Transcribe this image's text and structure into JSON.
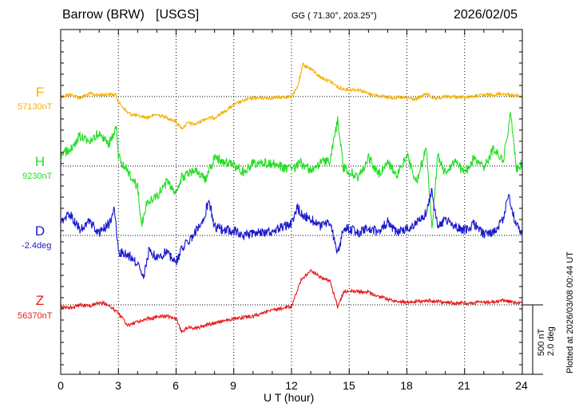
{
  "header": {
    "station": "Barrow (BRW)",
    "network": "[USGS]",
    "coords": "GG ( 71.30°, 203.25°)",
    "date": "2026/02/05"
  },
  "side": {
    "plotted": "Plotted at 2026/03/08 00:44 UT",
    "scale_nt": "500 nT",
    "scale_deg": "2.0 deg"
  },
  "chart_data": {
    "type": "line",
    "xlabel": "U T (hour)",
    "xlim": [
      0,
      24
    ],
    "xticks": [
      "0",
      "3",
      "6",
      "9",
      "12",
      "15",
      "18",
      "21",
      "24"
    ],
    "grid": true,
    "scale": {
      "nT_per_bar": 500,
      "deg_per_bar": 2.0
    },
    "series": [
      {
        "name": "F",
        "baseline": "57130nT",
        "color": "#f5b000",
        "points": [
          [
            0,
            0
          ],
          [
            0.5,
            -15
          ],
          [
            1,
            10
          ],
          [
            1.5,
            -20
          ],
          [
            2,
            -10
          ],
          [
            2.5,
            -18
          ],
          [
            2.9,
            -10
          ],
          [
            3,
            40
          ],
          [
            3.5,
            120
          ],
          [
            4,
            140
          ],
          [
            4.5,
            150
          ],
          [
            5,
            130
          ],
          [
            5.5,
            150
          ],
          [
            6,
            180
          ],
          [
            6.3,
            230
          ],
          [
            6.6,
            190
          ],
          [
            7,
            200
          ],
          [
            7.5,
            160
          ],
          [
            8,
            150
          ],
          [
            8.5,
            110
          ],
          [
            9,
            60
          ],
          [
            9.5,
            30
          ],
          [
            10,
            10
          ],
          [
            11,
            10
          ],
          [
            12,
            0
          ],
          [
            12.3,
            -60
          ],
          [
            12.6,
            -230
          ],
          [
            13,
            -200
          ],
          [
            13.5,
            -140
          ],
          [
            14,
            -110
          ],
          [
            14.5,
            -60
          ],
          [
            15,
            -50
          ],
          [
            15.5,
            -50
          ],
          [
            16,
            -20
          ],
          [
            17,
            5
          ],
          [
            18,
            10
          ],
          [
            18.5,
            20
          ],
          [
            19,
            -20
          ],
          [
            19.5,
            20
          ],
          [
            20,
            0
          ],
          [
            21,
            5
          ],
          [
            22,
            -10
          ],
          [
            23,
            -20
          ],
          [
            24,
            0
          ]
        ]
      },
      {
        "name": "H",
        "baseline": "9230nT",
        "color": "#22dd22",
        "points": [
          [
            0,
            -80
          ],
          [
            0.5,
            -120
          ],
          [
            1,
            -220
          ],
          [
            1.5,
            -180
          ],
          [
            2,
            -240
          ],
          [
            2.5,
            -160
          ],
          [
            2.9,
            -280
          ],
          [
            3,
            -60
          ],
          [
            3.5,
            40
          ],
          [
            4,
            150
          ],
          [
            4.2,
            420
          ],
          [
            4.5,
            260
          ],
          [
            5,
            220
          ],
          [
            5.5,
            120
          ],
          [
            6,
            180
          ],
          [
            6.3,
            80
          ],
          [
            7,
            20
          ],
          [
            7.5,
            100
          ],
          [
            8,
            -60
          ],
          [
            8.5,
            -30
          ],
          [
            9,
            0
          ],
          [
            9.5,
            40
          ],
          [
            10,
            -20
          ],
          [
            11,
            -20
          ],
          [
            12,
            30
          ],
          [
            12.5,
            -20
          ],
          [
            13,
            30
          ],
          [
            13.5,
            -20
          ],
          [
            14,
            -40
          ],
          [
            14.4,
            -330
          ],
          [
            14.7,
            10
          ],
          [
            15,
            40
          ],
          [
            15.5,
            80
          ],
          [
            16,
            -60
          ],
          [
            16.5,
            60
          ],
          [
            17,
            -30
          ],
          [
            17.5,
            70
          ],
          [
            18,
            -80
          ],
          [
            18.5,
            120
          ],
          [
            19,
            -140
          ],
          [
            19.3,
            460
          ],
          [
            19.6,
            -80
          ],
          [
            20,
            50
          ],
          [
            20.5,
            -40
          ],
          [
            21,
            60
          ],
          [
            21.5,
            -60
          ],
          [
            22,
            20
          ],
          [
            22.5,
            -120
          ],
          [
            23,
            -40
          ],
          [
            23.4,
            -380
          ],
          [
            23.7,
            20
          ],
          [
            24,
            -20
          ]
        ]
      },
      {
        "name": "D",
        "baseline": "-2.4deg",
        "color": "#1a1acc",
        "points": [
          [
            0,
            -100
          ],
          [
            0.5,
            -150
          ],
          [
            1,
            -40
          ],
          [
            1.5,
            -100
          ],
          [
            2,
            -20
          ],
          [
            2.5,
            -80
          ],
          [
            2.8,
            -190
          ],
          [
            3,
            120
          ],
          [
            3.5,
            140
          ],
          [
            4,
            210
          ],
          [
            4.3,
            320
          ],
          [
            4.6,
            100
          ],
          [
            5,
            160
          ],
          [
            5.5,
            120
          ],
          [
            6,
            190
          ],
          [
            6.3,
            100
          ],
          [
            7,
            -20
          ],
          [
            7.5,
            -150
          ],
          [
            7.7,
            -260
          ],
          [
            8,
            -60
          ],
          [
            8.5,
            -40
          ],
          [
            9,
            -40
          ],
          [
            9.5,
            10
          ],
          [
            10,
            -20
          ],
          [
            11,
            -30
          ],
          [
            11.5,
            -60
          ],
          [
            12,
            -80
          ],
          [
            12.3,
            -200
          ],
          [
            12.6,
            -150
          ],
          [
            13,
            -120
          ],
          [
            13.5,
            -60
          ],
          [
            14,
            -100
          ],
          [
            14.4,
            140
          ],
          [
            14.7,
            -50
          ],
          [
            15,
            -50
          ],
          [
            15.5,
            -20
          ],
          [
            16,
            -60
          ],
          [
            16.5,
            -20
          ],
          [
            17,
            -100
          ],
          [
            17.5,
            -20
          ],
          [
            18,
            -40
          ],
          [
            18.5,
            -100
          ],
          [
            19,
            -160
          ],
          [
            19.3,
            -320
          ],
          [
            19.6,
            -60
          ],
          [
            20,
            -120
          ],
          [
            20.5,
            -60
          ],
          [
            21,
            -40
          ],
          [
            21.5,
            -80
          ],
          [
            22,
            -10
          ],
          [
            22.5,
            -20
          ],
          [
            23,
            -120
          ],
          [
            23.3,
            -290
          ],
          [
            23.6,
            -120
          ],
          [
            24,
            0
          ]
        ]
      },
      {
        "name": "Z",
        "baseline": "56370nT",
        "color": "#e61a1a",
        "points": [
          [
            0,
            10
          ],
          [
            0.5,
            20
          ],
          [
            1,
            0
          ],
          [
            1.5,
            10
          ],
          [
            2,
            -20
          ],
          [
            2.5,
            0
          ],
          [
            3,
            60
          ],
          [
            3.5,
            150
          ],
          [
            4,
            120
          ],
          [
            4.5,
            100
          ],
          [
            5,
            90
          ],
          [
            5.5,
            80
          ],
          [
            6,
            100
          ],
          [
            6.3,
            200
          ],
          [
            6.6,
            160
          ],
          [
            7,
            170
          ],
          [
            8,
            130
          ],
          [
            9,
            100
          ],
          [
            10,
            80
          ],
          [
            11,
            40
          ],
          [
            12,
            10
          ],
          [
            12.5,
            -180
          ],
          [
            13,
            -250
          ],
          [
            13.5,
            -200
          ],
          [
            14,
            -170
          ],
          [
            14.4,
            10
          ],
          [
            14.7,
            -90
          ],
          [
            15,
            -100
          ],
          [
            16,
            -90
          ],
          [
            17,
            -40
          ],
          [
            18,
            -20
          ],
          [
            19,
            -30
          ],
          [
            20,
            -20
          ],
          [
            21,
            -10
          ],
          [
            22,
            -20
          ],
          [
            23,
            -30
          ],
          [
            24,
            -10
          ]
        ]
      }
    ]
  }
}
